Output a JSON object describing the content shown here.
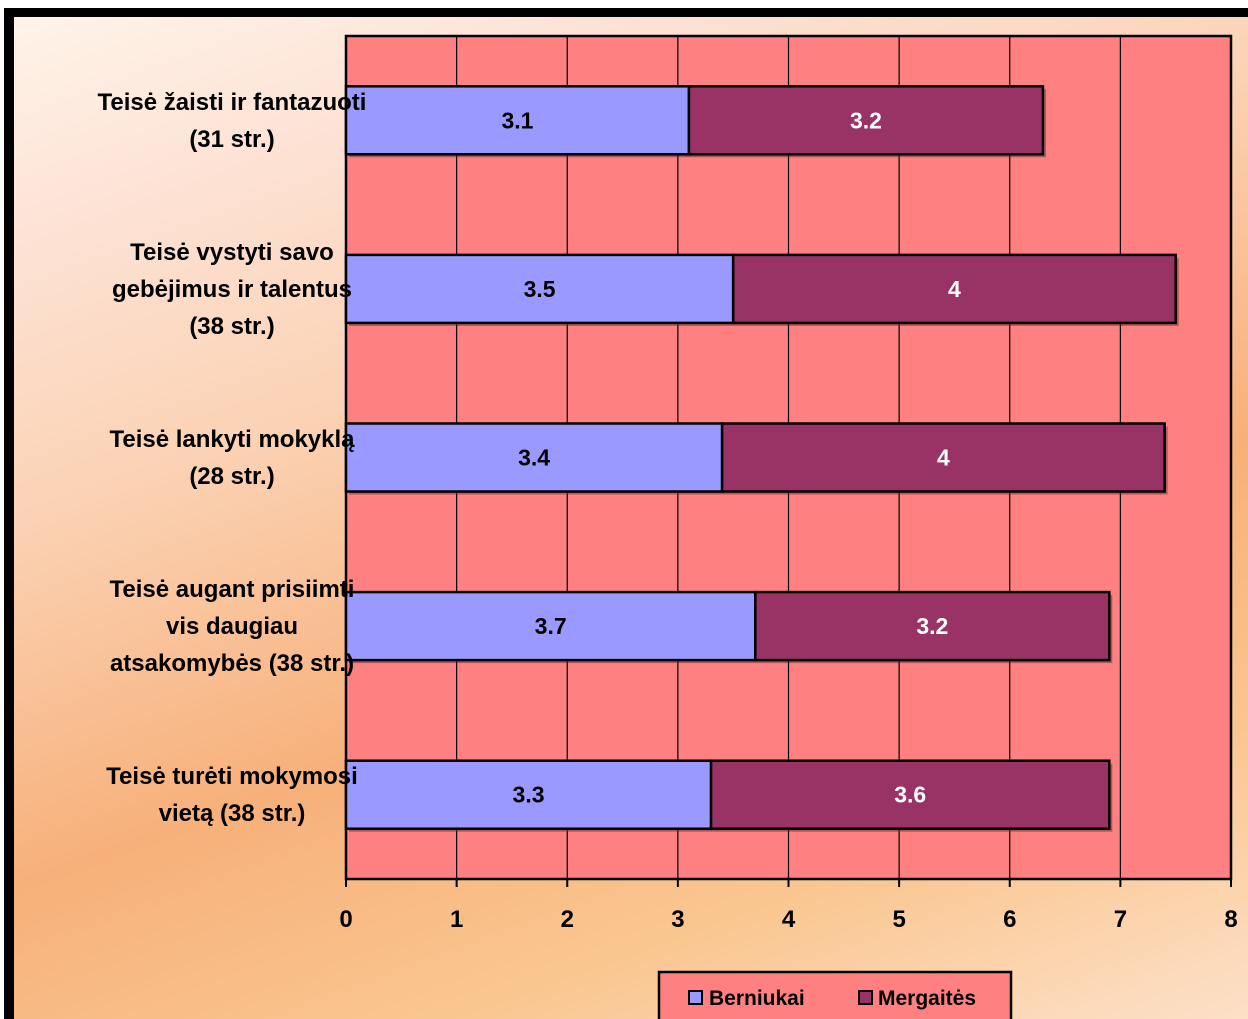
{
  "chart_data": {
    "type": "bar",
    "orientation": "horizontal",
    "stacked": true,
    "categories": [
      [
        "Teisė žaisti ir fantazuoti",
        "(31 str.)"
      ],
      [
        "Teisė vystyti savo",
        "gebėjimus ir talentus",
        "(38 str.)"
      ],
      [
        "Teisė lankyti mokyklą",
        "(28 str.)"
      ],
      [
        "Teisė augant prisiimti",
        "vis daugiau",
        "atsakomybės (38 str.)"
      ],
      [
        "Teisė turėti mokymosi",
        "vietą (38 str.)"
      ]
    ],
    "series": [
      {
        "name": "Berniukai",
        "values": [
          3.1,
          3.5,
          3.4,
          3.7,
          3.3
        ],
        "color": "#9999ff",
        "label_color": "#000000"
      },
      {
        "name": "Mergaitės",
        "values": [
          3.2,
          4,
          4,
          3.2,
          3.6
        ],
        "color": "#993366",
        "label_color": "#ffffff"
      }
    ],
    "xlim": [
      0,
      8
    ],
    "x_ticks": [
      "0",
      "1",
      "2",
      "3",
      "4",
      "5",
      "6",
      "7",
      "8"
    ],
    "grid": true,
    "plot_background": "#ff8080",
    "legend": "bottom"
  }
}
